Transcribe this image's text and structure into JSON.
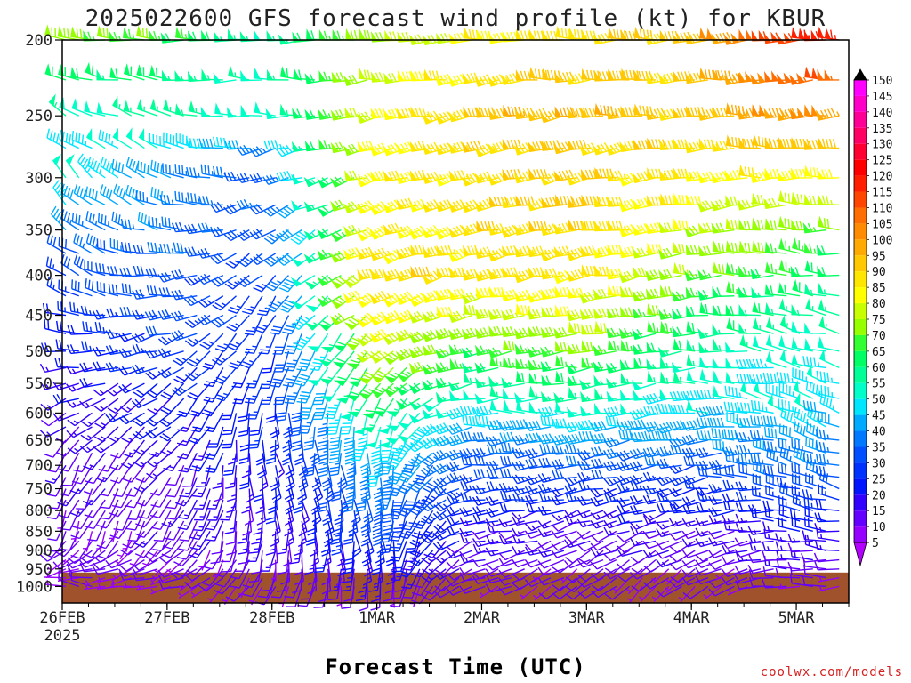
{
  "chart_data": {
    "type": "wind-barb-profile",
    "title": "2025022600 GFS forecast wind profile (kt) for KBUR",
    "xlabel": "Forecast Time (UTC)",
    "credit": "coolwx.com/models",
    "y_axis": {
      "unit": "hPa",
      "inverted": true,
      "ticks": [
        200,
        250,
        300,
        350,
        400,
        450,
        500,
        550,
        600,
        650,
        700,
        750,
        800,
        850,
        900,
        950,
        1000
      ]
    },
    "x_axis": {
      "ticks": [
        {
          "label": "26FEB",
          "sub": "2025",
          "hour": 0
        },
        {
          "label": "27FEB",
          "sub": "",
          "hour": 24
        },
        {
          "label": "28FEB",
          "sub": "",
          "hour": 48
        },
        {
          "label": "1MAR",
          "sub": "",
          "hour": 72
        },
        {
          "label": "2MAR",
          "sub": "",
          "hour": 96
        },
        {
          "label": "3MAR",
          "sub": "",
          "hour": 120
        },
        {
          "label": "4MAR",
          "sub": "",
          "hour": 144
        },
        {
          "label": "5MAR",
          "sub": "",
          "hour": 168
        }
      ],
      "range_hours": [
        0,
        180
      ],
      "step_hours": 3
    },
    "colorbar": {
      "labels": [
        150,
        145,
        140,
        135,
        130,
        125,
        120,
        115,
        110,
        105,
        100,
        95,
        90,
        85,
        80,
        75,
        70,
        65,
        60,
        55,
        50,
        45,
        40,
        35,
        30,
        25,
        20,
        15,
        10,
        5
      ],
      "colors": [
        "#000000",
        "#ff00ff",
        "#ff00c8",
        "#ff0096",
        "#ff0064",
        "#ff0032",
        "#ff0000",
        "#ff1e00",
        "#ff4600",
        "#ff6e00",
        "#ff8c00",
        "#ffaa00",
        "#ffc800",
        "#ffe600",
        "#ffff00",
        "#c8ff00",
        "#96ff00",
        "#32ff32",
        "#00ff64",
        "#00ff96",
        "#00ffc8",
        "#00e6ff",
        "#00aaff",
        "#0078ff",
        "#0050ff",
        "#0032ff",
        "#0014ff",
        "#3200ff",
        "#6400ff",
        "#9600ff",
        "#b400ff"
      ]
    },
    "levels_hpa": [
      1000,
      975,
      950,
      925,
      900,
      875,
      850,
      825,
      800,
      775,
      750,
      725,
      700,
      675,
      650,
      625,
      600,
      575,
      550,
      525,
      500,
      475,
      450,
      425,
      400,
      375,
      350,
      325,
      300,
      275,
      250,
      225,
      200
    ],
    "profile_time_hours": [
      0,
      3,
      6,
      9,
      12,
      15,
      18,
      21,
      24,
      27,
      30,
      33,
      36,
      39,
      42,
      45,
      48,
      51,
      54,
      57,
      60,
      63,
      66,
      69,
      72,
      75,
      78,
      81,
      84,
      87,
      90,
      93,
      96,
      99,
      102,
      105,
      108,
      111,
      114,
      117,
      120,
      123,
      126,
      129,
      132,
      135,
      138,
      141,
      144,
      147,
      150,
      153,
      156,
      159,
      162,
      165,
      168,
      171,
      174,
      177
    ],
    "keyframes": [
      {
        "hour": 0,
        "levels": [
          [
            1000,
            280,
            5
          ],
          [
            850,
            200,
            8
          ],
          [
            700,
            210,
            12
          ],
          [
            600,
            240,
            14
          ],
          [
            500,
            270,
            18
          ],
          [
            400,
            300,
            28
          ],
          [
            300,
            320,
            48
          ],
          [
            250,
            300,
            52
          ],
          [
            200,
            280,
            70
          ]
        ]
      },
      {
        "hour": 24,
        "levels": [
          [
            1000,
            260,
            6
          ],
          [
            850,
            210,
            10
          ],
          [
            700,
            220,
            12
          ],
          [
            600,
            230,
            18
          ],
          [
            500,
            250,
            25
          ],
          [
            400,
            270,
            32
          ],
          [
            300,
            290,
            38
          ],
          [
            250,
            280,
            55
          ],
          [
            200,
            270,
            65
          ]
        ]
      },
      {
        "hour": 48,
        "levels": [
          [
            1000,
            200,
            6
          ],
          [
            850,
            180,
            14
          ],
          [
            700,
            160,
            18
          ],
          [
            600,
            180,
            22
          ],
          [
            500,
            200,
            24
          ],
          [
            400,
            220,
            26
          ],
          [
            300,
            250,
            30
          ],
          [
            250,
            270,
            48
          ],
          [
            200,
            270,
            52
          ]
        ]
      },
      {
        "hour": 72,
        "levels": [
          [
            1000,
            180,
            10
          ],
          [
            850,
            170,
            25
          ],
          [
            700,
            180,
            40
          ],
          [
            600,
            200,
            55
          ],
          [
            500,
            230,
            75
          ],
          [
            400,
            250,
            85
          ],
          [
            300,
            255,
            80
          ],
          [
            250,
            260,
            78
          ],
          [
            200,
            265,
            70
          ]
        ]
      },
      {
        "hour": 96,
        "levels": [
          [
            1000,
            250,
            8
          ],
          [
            850,
            260,
            15
          ],
          [
            700,
            265,
            30
          ],
          [
            600,
            270,
            45
          ],
          [
            500,
            265,
            65
          ],
          [
            400,
            260,
            85
          ],
          [
            300,
            255,
            85
          ],
          [
            250,
            260,
            90
          ],
          [
            200,
            265,
            80
          ]
        ]
      },
      {
        "hour": 120,
        "levels": [
          [
            1000,
            230,
            8
          ],
          [
            850,
            250,
            12
          ],
          [
            700,
            260,
            30
          ],
          [
            600,
            265,
            50
          ],
          [
            500,
            265,
            70
          ],
          [
            400,
            260,
            85
          ],
          [
            300,
            260,
            88
          ],
          [
            250,
            265,
            92
          ],
          [
            200,
            270,
            85
          ]
        ]
      },
      {
        "hour": 144,
        "levels": [
          [
            1000,
            230,
            8
          ],
          [
            850,
            250,
            12
          ],
          [
            700,
            260,
            30
          ],
          [
            600,
            265,
            45
          ],
          [
            500,
            265,
            55
          ],
          [
            400,
            265,
            70
          ],
          [
            300,
            260,
            82
          ],
          [
            250,
            265,
            88
          ],
          [
            200,
            270,
            90
          ]
        ]
      },
      {
        "hour": 168,
        "levels": [
          [
            1000,
            270,
            8
          ],
          [
            850,
            280,
            18
          ],
          [
            700,
            285,
            35
          ],
          [
            600,
            290,
            45
          ],
          [
            500,
            285,
            50
          ],
          [
            400,
            275,
            60
          ],
          [
            300,
            270,
            80
          ],
          [
            250,
            270,
            100
          ],
          [
            200,
            270,
            115
          ]
        ]
      }
    ],
    "terrain": {
      "surface_hpa": 960
    }
  }
}
